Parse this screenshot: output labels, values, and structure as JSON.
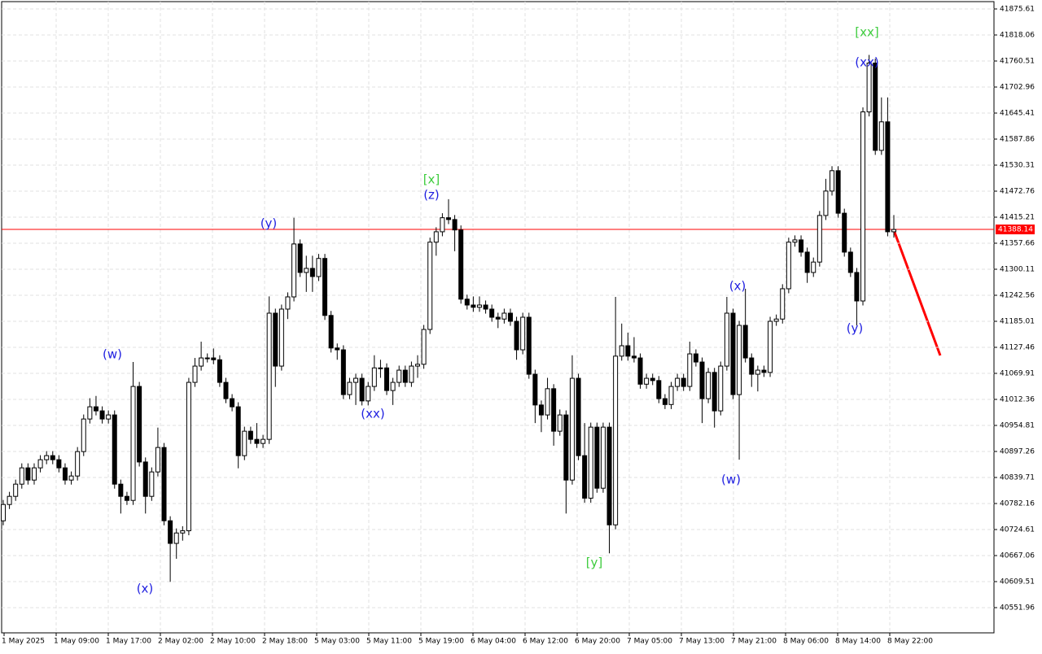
{
  "chart_data": {
    "type": "candlestick",
    "categories": [
      "1 May 2025",
      "1 May 09:00",
      "1 May 17:00",
      "2 May 02:00",
      "2 May 10:00",
      "2 May 18:00",
      "5 May 03:00",
      "5 May 11:00",
      "5 May 19:00",
      "6 May 04:00",
      "6 May 12:00",
      "6 May 20:00",
      "7 May 05:00",
      "7 May 13:00",
      "7 May 21:00",
      "8 May 06:00",
      "8 May 14:00",
      "8 May 22:00"
    ],
    "ylim": [
      40496.21,
      41891.8
    ],
    "yticks": [
      41875.61,
      41818.06,
      41760.51,
      41702.96,
      41645.41,
      41587.86,
      41530.31,
      41472.76,
      41415.21,
      41357.66,
      41300.11,
      41242.56,
      41185.01,
      41127.46,
      41069.91,
      41012.36,
      40954.81,
      40897.26,
      40839.71,
      40782.16,
      40724.61,
      40667.06,
      40609.51,
      40551.96
    ],
    "grid": true,
    "current_price": 41388.14,
    "current_price_color": "#ff0000",
    "up_color": "#ffffff",
    "down_color": "#000000",
    "candles": [
      [
        40744,
        40790,
        40734,
        40780
      ],
      [
        40780,
        40808,
        40770,
        40798
      ],
      [
        40798,
        40835,
        40788,
        40825
      ],
      [
        40825,
        40871,
        40815,
        40861
      ],
      [
        40861,
        40871,
        40824,
        40834
      ],
      [
        40834,
        40871,
        40824,
        40861
      ],
      [
        40861,
        40889,
        40851,
        40879
      ],
      [
        40879,
        40898,
        40869,
        40888
      ],
      [
        40888,
        40898,
        40869,
        40879
      ],
      [
        40879,
        40889,
        40851,
        40861
      ],
      [
        40861,
        40871,
        40824,
        40834
      ],
      [
        40834,
        40853,
        40824,
        40843
      ],
      [
        40843,
        40907,
        40833,
        40897
      ],
      [
        40897,
        40979,
        40887,
        40969
      ],
      [
        40969,
        41015,
        40959,
        40996
      ],
      [
        40996,
        41020,
        40977,
        40987
      ],
      [
        40987,
        40997,
        40959,
        40969
      ],
      [
        40969,
        40988,
        40959,
        40978
      ],
      [
        40978,
        40988,
        40815,
        40825
      ],
      [
        40825,
        40835,
        40760,
        40798
      ],
      [
        40798,
        40808,
        40779,
        40789
      ],
      [
        40789,
        41095,
        40779,
        41041
      ],
      [
        41041,
        41051,
        40864,
        40874
      ],
      [
        40874,
        40884,
        40760,
        40798
      ],
      [
        40798,
        40862,
        40788,
        40852
      ],
      [
        40852,
        40950,
        40842,
        40906
      ],
      [
        40906,
        40916,
        40734,
        40744
      ],
      [
        40744,
        40754,
        40609,
        40694
      ],
      [
        40694,
        40727,
        40660,
        40717
      ],
      [
        40717,
        40732,
        40700,
        40722
      ],
      [
        40722,
        41060,
        40712,
        41050
      ],
      [
        41050,
        41104,
        41040,
        41086
      ],
      [
        41086,
        41140,
        41076,
        41104
      ],
      [
        41104,
        41114,
        41094,
        41104
      ],
      [
        41104,
        41125,
        41090,
        41100
      ],
      [
        41100,
        41110,
        41040,
        41050
      ],
      [
        41050,
        41060,
        41004,
        41014
      ],
      [
        41014,
        41024,
        40986,
        40996
      ],
      [
        40996,
        41006,
        40860,
        40888
      ],
      [
        40888,
        40952,
        40878,
        40942
      ],
      [
        40942,
        40952,
        40914,
        40924
      ],
      [
        40924,
        40960,
        40905,
        40915
      ],
      [
        40915,
        40934,
        40905,
        40924
      ],
      [
        40924,
        41240,
        40914,
        41203
      ],
      [
        41203,
        41213,
        41040,
        41086
      ],
      [
        41086,
        41222,
        41076,
        41212
      ],
      [
        41212,
        41249,
        41190,
        41239
      ],
      [
        41239,
        41414,
        41229,
        41356
      ],
      [
        41356,
        41366,
        41283,
        41293
      ],
      [
        41293,
        41330,
        41250,
        41302
      ],
      [
        41302,
        41330,
        41250,
        41284
      ],
      [
        41284,
        41334,
        41274,
        41324
      ],
      [
        41324,
        41334,
        41188,
        41198
      ],
      [
        41198,
        41208,
        41116,
        41126
      ],
      [
        41126,
        41136,
        41100,
        41122
      ],
      [
        41122,
        41132,
        41013,
        41023
      ],
      [
        41023,
        41060,
        41013,
        41050
      ],
      [
        41050,
        41069,
        41000,
        41059
      ],
      [
        41059,
        41069,
        40999,
        41009
      ],
      [
        41009,
        41051,
        40999,
        41041
      ],
      [
        41041,
        41110,
        41031,
        41082
      ],
      [
        41082,
        41100,
        41060,
        41082
      ],
      [
        41082,
        41092,
        41022,
        41032
      ],
      [
        41032,
        41060,
        41000,
        41050
      ],
      [
        41050,
        41087,
        41040,
        41077
      ],
      [
        41077,
        41087,
        41040,
        41050
      ],
      [
        41050,
        41096,
        41040,
        41086
      ],
      [
        41086,
        41110,
        41060,
        41090
      ],
      [
        41090,
        41177,
        41080,
        41167
      ],
      [
        41167,
        41370,
        41157,
        41360
      ],
      [
        41360,
        41393,
        41330,
        41383
      ],
      [
        41383,
        41424,
        41373,
        41414
      ],
      [
        41414,
        41455,
        41400,
        41410
      ],
      [
        41410,
        41420,
        41340,
        41387
      ],
      [
        41387,
        41397,
        41224,
        41234
      ],
      [
        41234,
        41244,
        41211,
        41221
      ],
      [
        41221,
        41240,
        41206,
        41216
      ],
      [
        41216,
        41240,
        41206,
        41221
      ],
      [
        41221,
        41231,
        41202,
        41212
      ],
      [
        41212,
        41222,
        41184,
        41194
      ],
      [
        41194,
        41204,
        41170,
        41190
      ],
      [
        41190,
        41213,
        41180,
        41203
      ],
      [
        41203,
        41213,
        41175,
        41185
      ],
      [
        41185,
        41195,
        41100,
        41122
      ],
      [
        41122,
        41204,
        41112,
        41194
      ],
      [
        41194,
        41204,
        41058,
        41068
      ],
      [
        41068,
        41078,
        40960,
        41000
      ],
      [
        41000,
        41010,
        40940,
        40978
      ],
      [
        40978,
        41060,
        40968,
        41036
      ],
      [
        41036,
        41046,
        40910,
        40942
      ],
      [
        40942,
        40990,
        40932,
        40978
      ],
      [
        40978,
        40988,
        40760,
        40834
      ],
      [
        40834,
        41110,
        40824,
        41059
      ],
      [
        41059,
        41069,
        40878,
        40888
      ],
      [
        40888,
        40960,
        40784,
        40794
      ],
      [
        40794,
        40961,
        40784,
        40951
      ],
      [
        40951,
        40961,
        40806,
        40816
      ],
      [
        40816,
        40961,
        40806,
        40951
      ],
      [
        40951,
        40961,
        40672,
        40735
      ],
      [
        40735,
        41239,
        40725,
        41108
      ],
      [
        41108,
        41180,
        41098,
        41131
      ],
      [
        41131,
        41160,
        41098,
        41108
      ],
      [
        41108,
        41150,
        41094,
        41104
      ],
      [
        41104,
        41114,
        41036,
        41046
      ],
      [
        41046,
        41069,
        41036,
        41059
      ],
      [
        41059,
        41069,
        41044,
        41054
      ],
      [
        41054,
        41064,
        41004,
        41014
      ],
      [
        41014,
        41024,
        40991,
        41001
      ],
      [
        41001,
        41051,
        40991,
        41041
      ],
      [
        41041,
        41069,
        41031,
        41059
      ],
      [
        41059,
        41069,
        41031,
        41041
      ],
      [
        41041,
        41140,
        41031,
        41113
      ],
      [
        41113,
        41123,
        41085,
        41095
      ],
      [
        41095,
        41105,
        40960,
        41014
      ],
      [
        41014,
        41082,
        41004,
        41072
      ],
      [
        41072,
        41082,
        40950,
        40987
      ],
      [
        40987,
        41096,
        40977,
        41086
      ],
      [
        41086,
        41239,
        41076,
        41203
      ],
      [
        41203,
        41213,
        41013,
        41023
      ],
      [
        41023,
        41186,
        40879,
        41176
      ],
      [
        41176,
        41257,
        41094,
        41104
      ],
      [
        41104,
        41114,
        41040,
        41068
      ],
      [
        41068,
        41087,
        41030,
        41077
      ],
      [
        41077,
        41087,
        41062,
        41072
      ],
      [
        41072,
        41195,
        41062,
        41185
      ],
      [
        41185,
        41200,
        41175,
        41190
      ],
      [
        41190,
        41267,
        41180,
        41257
      ],
      [
        41257,
        41370,
        41247,
        41360
      ],
      [
        41360,
        41375,
        41350,
        41365
      ],
      [
        41365,
        41375,
        41328,
        41338
      ],
      [
        41338,
        41348,
        41270,
        41293
      ],
      [
        41293,
        41326,
        41283,
        41316
      ],
      [
        41316,
        41429,
        41306,
        41419
      ],
      [
        41419,
        41500,
        41409,
        41473
      ],
      [
        41473,
        41528,
        41463,
        41518
      ],
      [
        41518,
        41528,
        41414,
        41424
      ],
      [
        41424,
        41434,
        41328,
        41338
      ],
      [
        41338,
        41348,
        41283,
        41293
      ],
      [
        41293,
        41303,
        41176,
        41230
      ],
      [
        41230,
        41658,
        41220,
        41648
      ],
      [
        41648,
        41774,
        41638,
        41756
      ],
      [
        41756,
        41766,
        41553,
        41563
      ],
      [
        41563,
        41680,
        41553,
        41626
      ],
      [
        41626,
        41680,
        41373,
        41383
      ],
      [
        41383,
        41420,
        41370,
        41388
      ]
    ],
    "annotations": [
      {
        "text": "(w)",
        "color": "#1f1fe0"
      },
      {
        "text": "(x)",
        "color": "#1f1fe0"
      },
      {
        "text": "(y)",
        "color": "#1f1fe0"
      },
      {
        "text": "(xx)",
        "color": "#1f1fe0"
      },
      {
        "text": "(z)",
        "color": "#1f1fe0"
      },
      {
        "text": "[x]",
        "color": "#3dcc3d"
      },
      {
        "text": "[y]",
        "color": "#3dcc3d"
      },
      {
        "text": "(x)",
        "color": "#1f1fe0"
      },
      {
        "text": "(w)",
        "color": "#1f1fe0"
      },
      {
        "text": "(xx)",
        "color": "#1f1fe0"
      },
      {
        "text": "[xx]",
        "color": "#3dcc3d"
      },
      {
        "text": "(y)",
        "color": "#1f1fe0"
      }
    ]
  }
}
